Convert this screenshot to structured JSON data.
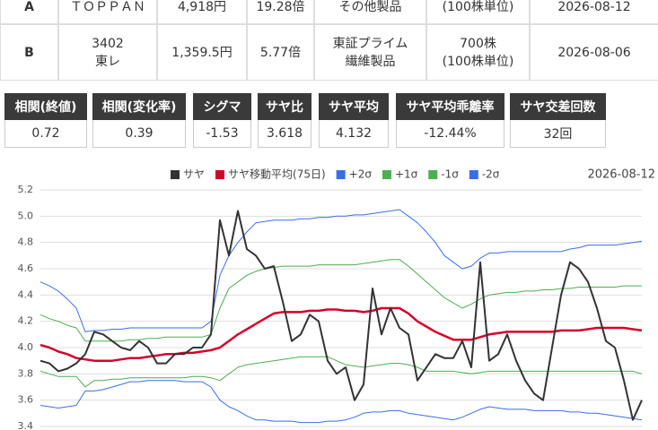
{
  "table": {
    "rows": [
      [
        [
          "A"
        ],
        [
          "ＴＯＰＰＡＮ"
        ],
        [
          "4,918円"
        ],
        [
          "19.28倍"
        ],
        [
          "その他製品"
        ],
        [
          "(100株単位)"
        ],
        [
          "2026-08-12"
        ]
      ],
      [
        [
          "B"
        ],
        [
          "3402",
          "東レ"
        ],
        [
          "1,359.5円"
        ],
        [
          "5.77倍"
        ],
        [
          "東証プライム",
          "繊維製品"
        ],
        [
          "700株",
          "(100株単位)"
        ],
        [
          "2026-08-06"
        ]
      ]
    ]
  },
  "stats": {
    "headers": [
      "相関(終値)",
      "相関(変化率)",
      "シグマ",
      "サヤ比",
      "サヤ平均",
      "サヤ平均乖離率",
      "サヤ交差回数"
    ],
    "values": [
      "0.72",
      "0.39",
      "-1.53",
      "3.618",
      "4.132",
      "-12.44%",
      "32回"
    ]
  },
  "chart_data": {
    "type": "line",
    "date": "2026-08-12",
    "ylim": [
      3.4,
      5.2
    ],
    "yticks": [
      3.4,
      3.6,
      3.8,
      {
        "value": 4,
        "label": "4.0"
      },
      4.2,
      4.4,
      4.6,
      4.8,
      {
        "value": 5,
        "label": "5.0"
      },
      5.2
    ],
    "grid": true,
    "series": [
      {
        "name": "サヤ",
        "color": "#333333",
        "width": 2,
        "values": [
          3.9,
          3.88,
          3.82,
          3.84,
          3.88,
          3.95,
          4.12,
          4.1,
          4.05,
          4.0,
          3.98,
          4.05,
          4.0,
          3.88,
          3.88,
          3.95,
          3.95,
          4.0,
          4.0,
          4.1,
          4.97,
          4.7,
          5.04,
          4.75,
          4.7,
          4.6,
          4.62,
          4.35,
          4.05,
          4.1,
          4.25,
          4.2,
          3.9,
          3.8,
          3.85,
          3.6,
          3.72,
          4.45,
          4.1,
          4.3,
          4.15,
          4.1,
          3.75,
          3.85,
          3.95,
          3.92,
          3.92,
          4.05,
          3.85,
          4.65,
          3.9,
          3.95,
          4.1,
          3.9,
          3.75,
          3.65,
          3.6,
          4.0,
          4.4,
          4.65,
          4.6,
          4.5,
          4.3,
          4.05,
          4.0,
          3.75,
          3.45,
          3.6
        ]
      },
      {
        "name": "サヤ移動平均(75日)",
        "color": "#d6002a",
        "width": 2.5,
        "values": [
          4.02,
          4.0,
          3.97,
          3.95,
          3.92,
          3.91,
          3.9,
          3.9,
          3.9,
          3.91,
          3.92,
          3.92,
          3.93,
          3.94,
          3.95,
          3.95,
          3.96,
          3.96,
          3.97,
          3.98,
          4.0,
          4.05,
          4.1,
          4.14,
          4.18,
          4.22,
          4.26,
          4.27,
          4.27,
          4.27,
          4.28,
          4.28,
          4.29,
          4.29,
          4.28,
          4.28,
          4.27,
          4.28,
          4.3,
          4.3,
          4.3,
          4.26,
          4.2,
          4.16,
          4.12,
          4.09,
          4.06,
          4.06,
          4.06,
          4.08,
          4.1,
          4.11,
          4.12,
          4.12,
          4.12,
          4.12,
          4.12,
          4.12,
          4.13,
          4.13,
          4.13,
          4.14,
          4.15,
          4.15,
          4.15,
          4.15,
          4.14,
          4.13
        ]
      },
      {
        "name": "+2σ",
        "color": "#3a6ee8",
        "width": 1,
        "values": [
          4.5,
          4.47,
          4.43,
          4.37,
          4.3,
          4.12,
          4.13,
          4.13,
          4.14,
          4.14,
          4.15,
          4.15,
          4.15,
          4.15,
          4.15,
          4.15,
          4.15,
          4.15,
          4.15,
          4.2,
          4.55,
          4.7,
          4.8,
          4.88,
          4.95,
          4.96,
          4.97,
          4.97,
          4.97,
          4.98,
          4.98,
          4.99,
          4.99,
          5.0,
          5.0,
          5.01,
          5.01,
          5.02,
          5.03,
          5.04,
          5.05,
          5.0,
          4.95,
          4.88,
          4.8,
          4.7,
          4.65,
          4.6,
          4.62,
          4.68,
          4.72,
          4.72,
          4.73,
          4.73,
          4.73,
          4.73,
          4.73,
          4.73,
          4.73,
          4.75,
          4.76,
          4.78,
          4.78,
          4.78,
          4.78,
          4.79,
          4.8,
          4.81
        ]
      },
      {
        "name": "+1σ",
        "color": "#4caf50",
        "width": 1,
        "values": [
          4.25,
          4.22,
          4.2,
          4.17,
          4.15,
          4.05,
          4.05,
          4.05,
          4.05,
          4.05,
          4.06,
          4.06,
          4.07,
          4.07,
          4.08,
          4.08,
          4.08,
          4.08,
          4.08,
          4.1,
          4.3,
          4.45,
          4.5,
          4.55,
          4.58,
          4.6,
          4.61,
          4.62,
          4.62,
          4.62,
          4.62,
          4.63,
          4.63,
          4.63,
          4.63,
          4.63,
          4.64,
          4.65,
          4.66,
          4.67,
          4.67,
          4.62,
          4.56,
          4.5,
          4.44,
          4.38,
          4.34,
          4.3,
          4.33,
          4.37,
          4.4,
          4.41,
          4.42,
          4.42,
          4.43,
          4.43,
          4.44,
          4.44,
          4.45,
          4.45,
          4.46,
          4.46,
          4.46,
          4.46,
          4.46,
          4.47,
          4.47,
          4.47
        ]
      },
      {
        "name": "-1σ",
        "color": "#4caf50",
        "width": 1,
        "values": [
          3.82,
          3.8,
          3.78,
          3.78,
          3.78,
          3.7,
          3.75,
          3.75,
          3.76,
          3.76,
          3.77,
          3.77,
          3.77,
          3.77,
          3.77,
          3.77,
          3.77,
          3.78,
          3.78,
          3.77,
          3.75,
          3.8,
          3.85,
          3.87,
          3.88,
          3.89,
          3.9,
          3.91,
          3.92,
          3.93,
          3.93,
          3.93,
          3.93,
          3.9,
          3.87,
          3.86,
          3.85,
          3.86,
          3.87,
          3.88,
          3.88,
          3.87,
          3.85,
          3.82,
          3.82,
          3.82,
          3.82,
          3.81,
          3.8,
          3.81,
          3.82,
          3.82,
          3.82,
          3.82,
          3.82,
          3.82,
          3.82,
          3.82,
          3.82,
          3.82,
          3.82,
          3.82,
          3.82,
          3.82,
          3.82,
          3.82,
          3.82,
          3.8
        ]
      },
      {
        "name": "-2σ",
        "color": "#3a6ee8",
        "width": 1,
        "values": [
          3.56,
          3.55,
          3.54,
          3.55,
          3.56,
          3.67,
          3.67,
          3.68,
          3.7,
          3.72,
          3.74,
          3.74,
          3.75,
          3.75,
          3.75,
          3.75,
          3.74,
          3.74,
          3.74,
          3.7,
          3.6,
          3.55,
          3.52,
          3.48,
          3.45,
          3.45,
          3.44,
          3.44,
          3.44,
          3.43,
          3.43,
          3.43,
          3.44,
          3.44,
          3.45,
          3.47,
          3.5,
          3.51,
          3.51,
          3.52,
          3.52,
          3.5,
          3.49,
          3.48,
          3.47,
          3.46,
          3.45,
          3.47,
          3.5,
          3.53,
          3.55,
          3.54,
          3.53,
          3.53,
          3.53,
          3.52,
          3.52,
          3.52,
          3.52,
          3.51,
          3.51,
          3.5,
          3.5,
          3.49,
          3.48,
          3.47,
          3.46,
          3.45
        ]
      }
    ]
  }
}
